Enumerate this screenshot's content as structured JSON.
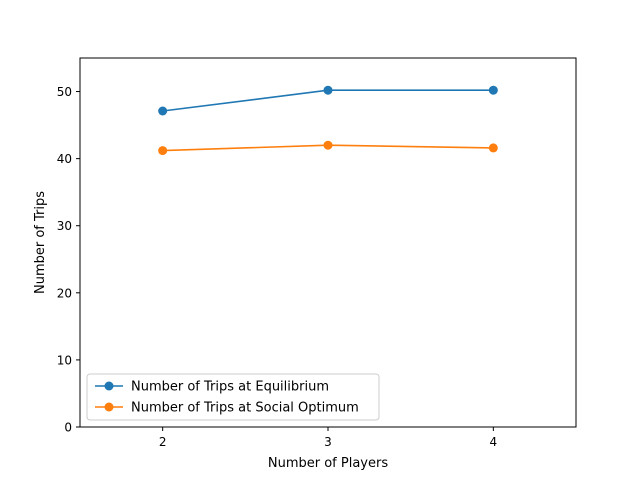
{
  "chart_data": {
    "type": "line",
    "title": "",
    "xlabel": "Number of Players",
    "ylabel": "Number of Trips",
    "x": [
      2,
      3,
      4
    ],
    "xlim": [
      1.5,
      4.5
    ],
    "ylim": [
      0,
      55
    ],
    "xticks": [
      "2",
      "3",
      "4"
    ],
    "yticks": [
      "0",
      "10",
      "20",
      "30",
      "40",
      "50"
    ],
    "legend_position": "lower-left",
    "grid": false,
    "series": [
      {
        "name": "Number of Trips at Equilibrium",
        "color": "#1f77b4",
        "values": [
          47.1,
          50.2,
          50.2
        ]
      },
      {
        "name": "Number of Trips at Social Optimum",
        "color": "#ff7f0e",
        "values": [
          41.2,
          42.0,
          41.6
        ]
      }
    ]
  }
}
